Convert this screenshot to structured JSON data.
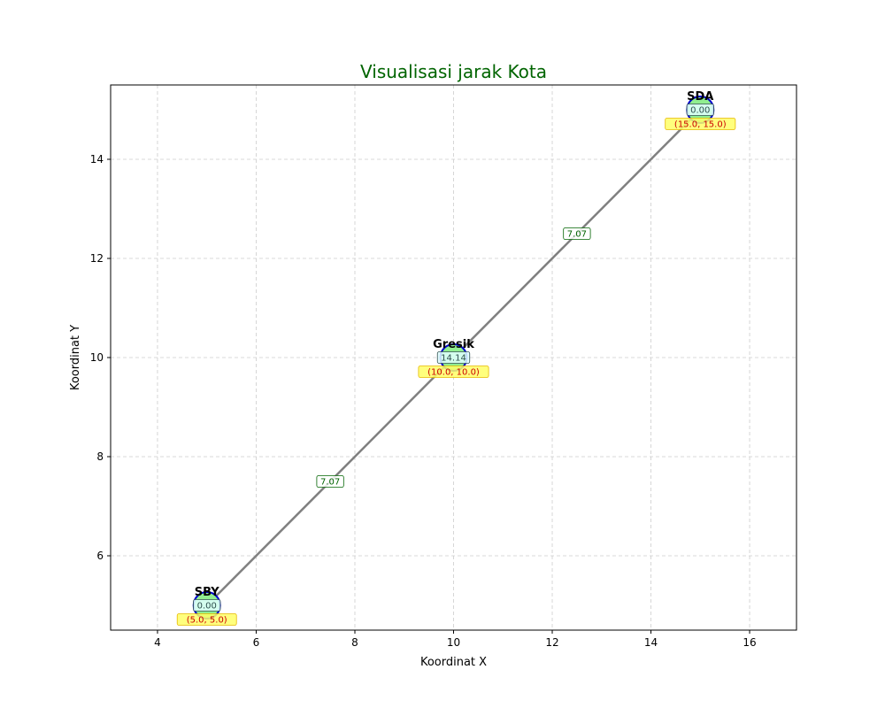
{
  "chart_data": {
    "type": "scatter",
    "title": "Visualisasi jarak Kota",
    "xlabel": "Koordinat X",
    "ylabel": "Koordinat Y",
    "xlim": [
      3.05,
      16.95
    ],
    "ylim": [
      4.5,
      15.5
    ],
    "xticks": [
      4,
      6,
      8,
      10,
      12,
      14,
      16
    ],
    "yticks": [
      6,
      8,
      10,
      12,
      14
    ],
    "grid": true,
    "points": [
      {
        "name": "SBY",
        "x": 5,
        "y": 5,
        "value": "0.00",
        "coord_label": "(5.0, 5.0)"
      },
      {
        "name": "Gresik",
        "x": 10,
        "y": 10,
        "value": "14.14",
        "coord_label": "(10.0, 10.0)"
      },
      {
        "name": "SDA",
        "x": 15,
        "y": 15,
        "value": "0.00",
        "coord_label": "(15.0, 15.0)"
      }
    ],
    "edges": [
      {
        "from": "SBY",
        "to": "Gresik",
        "distance": "7.07"
      },
      {
        "from": "Gresik",
        "to": "SDA",
        "distance": "7.07"
      }
    ]
  },
  "colors": {
    "title": "#006400",
    "line": "#808080",
    "grid": "#cccccc",
    "node_fill": "#90ee90",
    "node_stroke": "#0000cd",
    "value_box": "#e0ffff",
    "coord_box": "#ffff66",
    "coord_text": "#cc0000",
    "edge_label_text": "#006400"
  }
}
